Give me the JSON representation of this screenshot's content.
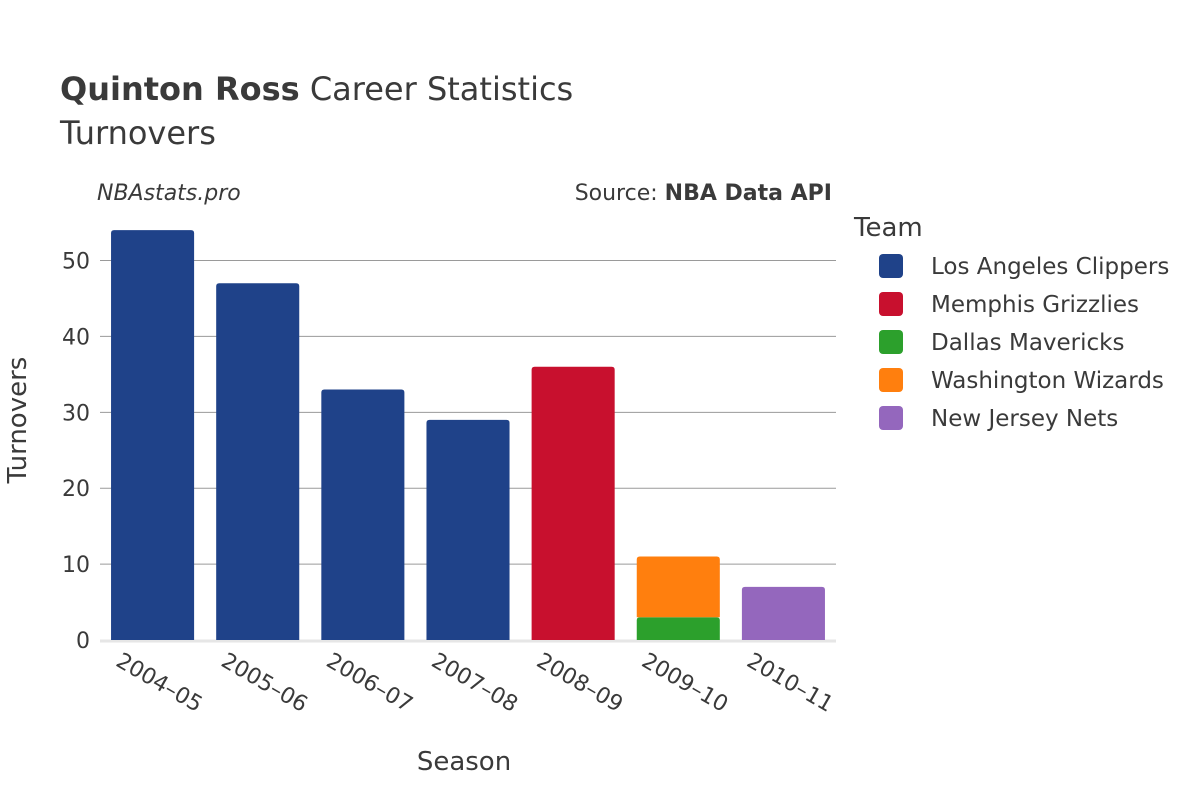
{
  "header": {
    "player_name": "Quinton Ross",
    "title_rest": " Career Statistics",
    "subtitle": "Turnovers",
    "watermark": "NBAstats.pro",
    "source_prefix": "Source: ",
    "source_name": "NBA Data API"
  },
  "chart_data": {
    "type": "bar",
    "stacked": true,
    "title": "Quinton Ross Career Statistics",
    "subtitle": "Turnovers",
    "xlabel": "Season",
    "ylabel": "Turnovers",
    "ylim": [
      0,
      56
    ],
    "yticks": [
      0,
      10,
      20,
      30,
      40,
      50
    ],
    "grid": true,
    "legend_title": "Team",
    "legend_position": "right",
    "categories": [
      "2004–05",
      "2005–06",
      "2006–07",
      "2007–08",
      "2008–09",
      "2009–10",
      "2010–11"
    ],
    "series": [
      {
        "name": "Los Angeles Clippers",
        "color": "#1f4289",
        "values": [
          54,
          47,
          33,
          29,
          0,
          0,
          0
        ]
      },
      {
        "name": "Memphis Grizzlies",
        "color": "#c8102e",
        "values": [
          0,
          0,
          0,
          0,
          36,
          0,
          0
        ]
      },
      {
        "name": "Dallas Mavericks",
        "color": "#2ca02c",
        "values": [
          0,
          0,
          0,
          0,
          0,
          3,
          0
        ]
      },
      {
        "name": "Washington Wizards",
        "color": "#ff7f0e",
        "values": [
          0,
          0,
          0,
          0,
          0,
          8,
          0
        ]
      },
      {
        "name": "New Jersey Nets",
        "color": "#9467bd",
        "values": [
          0,
          0,
          0,
          0,
          0,
          0,
          7
        ]
      }
    ]
  }
}
